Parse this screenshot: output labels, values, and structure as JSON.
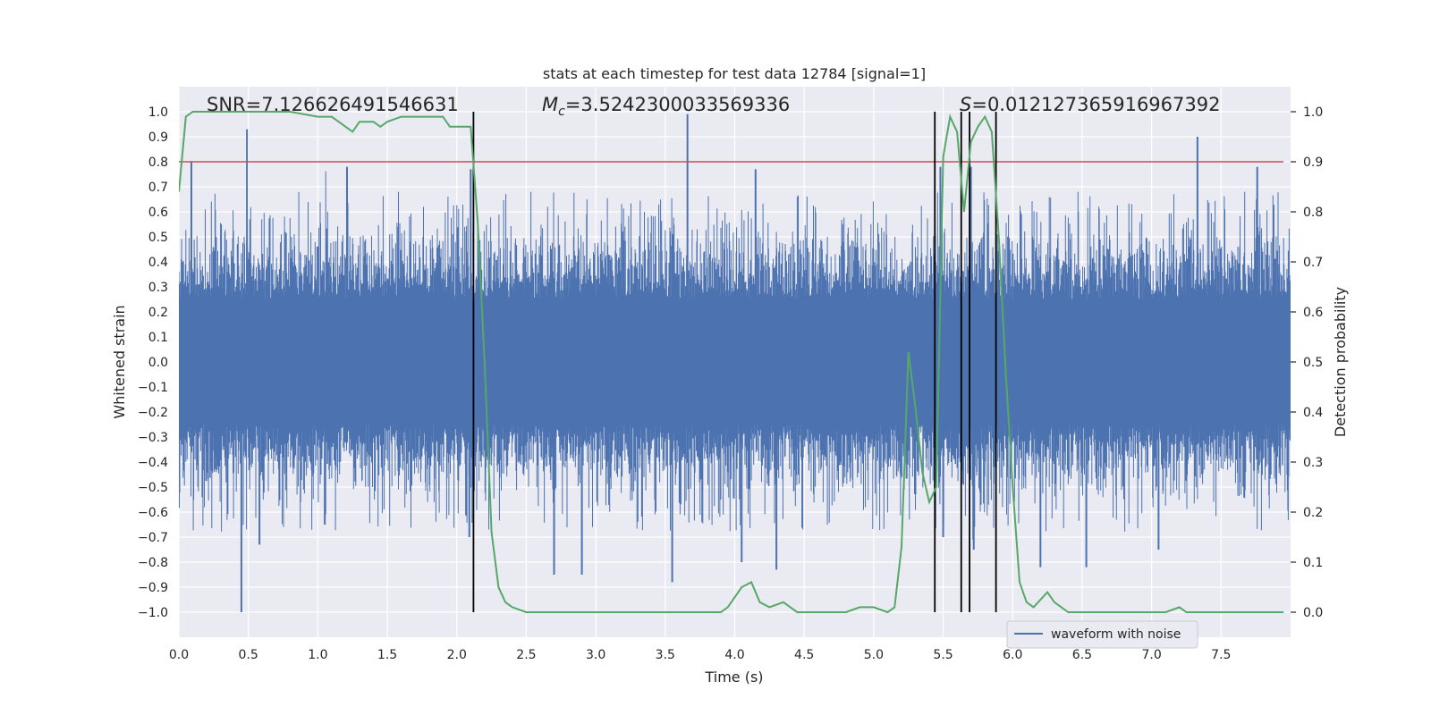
{
  "chart_data": {
    "type": "line",
    "title": "stats at each timestep for test data 12784 [signal=1]",
    "xlabel": "Time (s)",
    "ylabel": "Whitened strain",
    "y2label": "Detection probability",
    "xlim": [
      0.0,
      8.0
    ],
    "ylim": [
      -1.1,
      1.1
    ],
    "y2lim": [
      -0.05,
      1.05
    ],
    "x_ticks": [
      0.0,
      0.5,
      1.0,
      1.5,
      2.0,
      2.5,
      3.0,
      3.5,
      4.0,
      4.5,
      5.0,
      5.5,
      6.0,
      6.5,
      7.0,
      7.5
    ],
    "x_tick_labels": [
      "0.0",
      "0.5",
      "1.0",
      "1.5",
      "2.0",
      "2.5",
      "3.0",
      "3.5",
      "4.0",
      "4.5",
      "5.0",
      "5.5",
      "6.0",
      "6.5",
      "7.0",
      "7.5"
    ],
    "y_ticks": [
      1.0,
      0.9,
      0.8,
      0.7,
      0.6,
      0.5,
      0.4,
      0.3,
      0.2,
      0.1,
      0.0,
      -0.1,
      -0.2,
      -0.3,
      -0.4,
      -0.5,
      -0.6,
      -0.7,
      -0.8,
      -0.9,
      -1.0
    ],
    "y_tick_labels": [
      "1.0",
      "0.9",
      "0.8",
      "0.7",
      "0.6",
      "0.5",
      "0.4",
      "0.3",
      "0.2",
      "0.1",
      "0.0",
      "−0.1",
      "−0.2",
      "−0.3",
      "−0.4",
      "−0.5",
      "−0.6",
      "−0.7",
      "−0.8",
      "−0.9",
      "−1.0"
    ],
    "y2_ticks": [
      1.0,
      0.9,
      0.8,
      0.7,
      0.6,
      0.5,
      0.4,
      0.3,
      0.2,
      0.1,
      0.0
    ],
    "y2_tick_labels": [
      "1.0",
      "0.9",
      "0.8",
      "0.7",
      "0.6",
      "0.5",
      "0.4",
      "0.3",
      "0.2",
      "0.1",
      "0.0"
    ],
    "annotations": {
      "snr": "SNR=7.126626491546631",
      "mc_symbol": "M",
      "mc_sub": "c",
      "mc_value": "=3.5242300033569336",
      "s_symbol": "S",
      "s_value": "=0.012127365916967392"
    },
    "legend": {
      "label": "waveform with noise",
      "position": "lower-right"
    },
    "series": [
      {
        "name": "waveform with noise",
        "color": "#4c72b0",
        "envelope_peaks": [
          {
            "x": 0.09,
            "y": 0.8
          },
          {
            "x": 0.49,
            "y": 0.93
          },
          {
            "x": 0.45,
            "y": -1.0
          },
          {
            "x": 0.58,
            "y": -0.73
          },
          {
            "x": 1.21,
            "y": 0.78
          },
          {
            "x": 1.05,
            "y": -0.65
          },
          {
            "x": 2.09,
            "y": -0.7
          },
          {
            "x": 2.1,
            "y": 0.77
          },
          {
            "x": 2.7,
            "y": -0.85
          },
          {
            "x": 2.9,
            "y": -0.85
          },
          {
            "x": 3.55,
            "y": -0.88
          },
          {
            "x": 3.66,
            "y": 0.99
          },
          {
            "x": 4.15,
            "y": 0.77
          },
          {
            "x": 4.05,
            "y": -0.8
          },
          {
            "x": 4.3,
            "y": -0.83
          },
          {
            "x": 5.48,
            "y": 0.78
          },
          {
            "x": 5.7,
            "y": 0.78
          },
          {
            "x": 5.5,
            "y": -0.7
          },
          {
            "x": 5.72,
            "y": -0.75
          },
          {
            "x": 6.2,
            "y": -0.82
          },
          {
            "x": 6.53,
            "y": -0.82
          },
          {
            "x": 7.05,
            "y": -0.75
          },
          {
            "x": 7.33,
            "y": 0.9
          },
          {
            "x": 7.76,
            "y": 0.78
          }
        ]
      },
      {
        "name": "detection probability",
        "axis": "right",
        "color": "#55a868",
        "x": [
          0.0,
          0.05,
          0.1,
          0.2,
          0.4,
          0.6,
          0.8,
          1.0,
          1.1,
          1.2,
          1.25,
          1.3,
          1.4,
          1.45,
          1.5,
          1.6,
          1.7,
          1.8,
          1.9,
          1.95,
          2.0,
          2.05,
          2.1,
          2.15,
          2.2,
          2.25,
          2.3,
          2.35,
          2.4,
          2.5,
          2.7,
          3.0,
          3.3,
          3.6,
          3.9,
          3.95,
          4.05,
          4.12,
          4.18,
          4.25,
          4.35,
          4.45,
          4.6,
          4.8,
          4.9,
          5.0,
          5.1,
          5.15,
          5.2,
          5.25,
          5.3,
          5.35,
          5.4,
          5.45,
          5.5,
          5.55,
          5.6,
          5.65,
          5.7,
          5.75,
          5.8,
          5.85,
          5.9,
          5.95,
          6.0,
          6.05,
          6.1,
          6.15,
          6.25,
          6.3,
          6.4,
          6.5,
          6.6,
          6.8,
          7.0,
          7.1,
          7.2,
          7.25,
          7.4,
          7.6,
          7.8,
          7.95
        ],
        "values": [
          0.84,
          0.99,
          1.0,
          1.0,
          1.0,
          1.0,
          1.0,
          0.99,
          0.99,
          0.97,
          0.96,
          0.98,
          0.98,
          0.97,
          0.98,
          0.99,
          0.99,
          0.99,
          0.99,
          0.97,
          0.97,
          0.97,
          0.97,
          0.78,
          0.5,
          0.16,
          0.05,
          0.02,
          0.01,
          0.0,
          0.0,
          0.0,
          0.0,
          0.0,
          0.0,
          0.01,
          0.05,
          0.06,
          0.02,
          0.01,
          0.02,
          0.0,
          0.0,
          0.0,
          0.01,
          0.01,
          0.0,
          0.01,
          0.13,
          0.52,
          0.41,
          0.28,
          0.22,
          0.25,
          0.91,
          0.99,
          0.96,
          0.8,
          0.94,
          0.97,
          0.99,
          0.96,
          0.75,
          0.48,
          0.25,
          0.06,
          0.02,
          0.01,
          0.04,
          0.02,
          0.0,
          0.0,
          0.0,
          0.0,
          0.0,
          0.0,
          0.01,
          0.0,
          0.0,
          0.0,
          0.0,
          0.0
        ]
      }
    ],
    "threshold": {
      "axis": "right",
      "value": 0.9,
      "color": "#c44e52"
    },
    "vertical_lines": [
      2.12,
      5.44,
      5.63,
      5.69,
      5.88
    ],
    "vertical_line_range": [
      0.0,
      1.0
    ],
    "grid": true,
    "background": "#eaeaf2"
  }
}
